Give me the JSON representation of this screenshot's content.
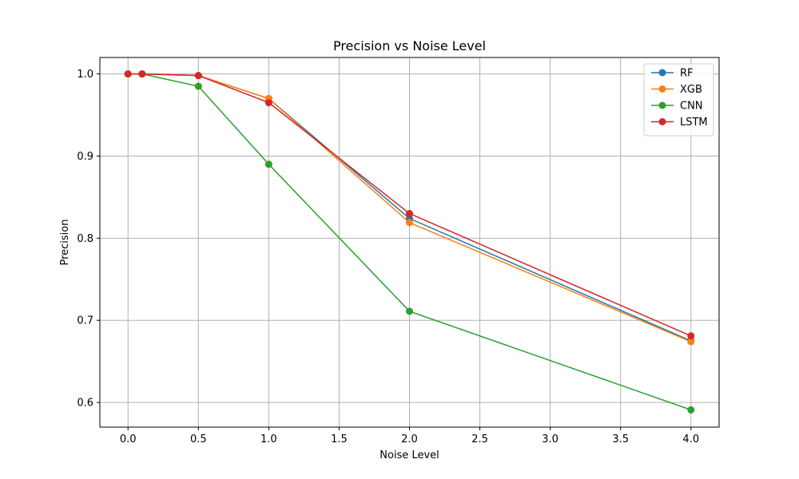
{
  "chart_data": {
    "type": "line",
    "title": "Precision vs Noise Level",
    "xlabel": "Noise Level",
    "ylabel": "Precision",
    "x": [
      0.0,
      0.1,
      0.5,
      1.0,
      2.0,
      4.0
    ],
    "xlim": [
      -0.2,
      4.2
    ],
    "ylim": [
      0.57,
      1.02
    ],
    "xticks": [
      0.0,
      0.5,
      1.0,
      1.5,
      2.0,
      2.5,
      3.0,
      3.5,
      4.0
    ],
    "xtick_labels": [
      "0.0",
      "0.5",
      "1.0",
      "1.5",
      "2.0",
      "2.5",
      "3.0",
      "3.5",
      "4.0"
    ],
    "yticks": [
      0.6,
      0.7,
      0.8,
      0.9,
      1.0
    ],
    "ytick_labels": [
      "0.6",
      "0.7",
      "0.8",
      "0.9",
      "1.0"
    ],
    "grid": true,
    "legend_position": "top-right",
    "series": [
      {
        "name": "RF",
        "color": "#1f77b4",
        "values": [
          1.0,
          1.0,
          0.998,
          0.97,
          0.824,
          0.675
        ]
      },
      {
        "name": "XGB",
        "color": "#ff7f0e",
        "values": [
          1.0,
          1.0,
          0.998,
          0.97,
          0.819,
          0.674
        ]
      },
      {
        "name": "CNN",
        "color": "#2ca02c",
        "values": [
          1.0,
          1.0,
          0.985,
          0.89,
          0.711,
          0.591
        ]
      },
      {
        "name": "LSTM",
        "color": "#d62728",
        "values": [
          1.0,
          1.0,
          0.998,
          0.965,
          0.83,
          0.681
        ]
      }
    ]
  }
}
